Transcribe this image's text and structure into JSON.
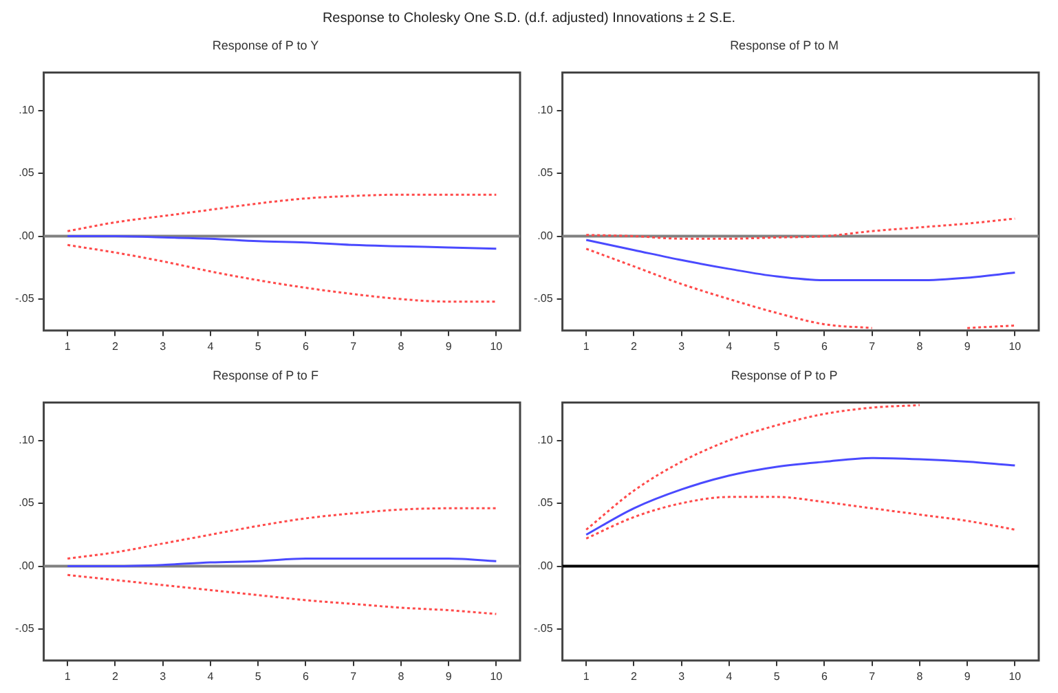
{
  "chart_data": [
    {
      "type": "line",
      "title": "Response to Cholesky One S.D. (d.f. adjusted) Innovations ± 2 S.E.",
      "subtitle": "Response of P to Y",
      "categories": [
        "1",
        "2",
        "3",
        "4",
        "5",
        "6",
        "7",
        "8",
        "9",
        "10"
      ],
      "series": [
        {
          "color": "#4a4aff",
          "line_style": "solid",
          "values": [
            0,
            0,
            -0.001,
            -0.002,
            -0.004,
            -0.005,
            -0.007,
            -0.008,
            -0.009,
            -0.01
          ]
        },
        {
          "color": "#ff4a4a",
          "line_style": "dotted",
          "values": [
            0.004,
            0.011,
            0.016,
            0.021,
            0.026,
            0.03,
            0.032,
            0.033,
            0.033,
            0.033
          ]
        },
        {
          "color": "#ff4a4a",
          "line_style": "dotted",
          "values": [
            -0.007,
            -0.013,
            -0.02,
            -0.028,
            -0.035,
            -0.041,
            -0.046,
            -0.05,
            -0.052,
            -0.052
          ]
        }
      ],
      "ylim": [
        -0.075,
        0.13
      ],
      "yticks": [
        {
          "value": -0.05,
          "label": "-.05"
        },
        {
          "value": 0,
          "label": ".00"
        },
        {
          "value": 0.05,
          "label": ".05"
        },
        {
          "value": 0.1,
          "label": ".10"
        }
      ],
      "ref_lines": [
        {
          "axis": "y",
          "value": 0,
          "color": "#808080"
        }
      ],
      "grid": false,
      "legend": false,
      "marker": "none"
    },
    {
      "type": "line",
      "title": "Response of P to M",
      "categories": [
        "1",
        "2",
        "3",
        "4",
        "5",
        "6",
        "7",
        "8",
        "9",
        "10"
      ],
      "series": [
        {
          "color": "#4a4aff",
          "line_style": "solid",
          "values": [
            -0.003,
            -0.011,
            -0.019,
            -0.026,
            -0.032,
            -0.035,
            -0.035,
            -0.035,
            -0.033,
            -0.029
          ]
        },
        {
          "color": "#ff4a4a",
          "line_style": "dotted",
          "values": [
            0.001,
            0,
            -0.002,
            -0.002,
            -0.001,
            0,
            0.004,
            0.007,
            0.01,
            0.014
          ]
        },
        {
          "color": "#ff4a4a",
          "line_style": "dotted",
          "values": [
            -0.01,
            -0.024,
            -0.038,
            -0.05,
            -0.061,
            -0.07,
            -0.073,
            null,
            -0.073,
            -0.071
          ]
        }
      ],
      "ylim": [
        -0.075,
        0.13
      ],
      "yticks": [
        {
          "value": -0.05,
          "label": "-.05"
        },
        {
          "value": 0,
          "label": ".00"
        },
        {
          "value": 0.05,
          "label": ".05"
        },
        {
          "value": 0.1,
          "label": ".10"
        }
      ],
      "ref_lines": [
        {
          "axis": "y",
          "value": 0,
          "color": "#808080"
        }
      ],
      "grid": false,
      "legend": false,
      "marker": "none"
    },
    {
      "type": "line",
      "title": "Response of P to F",
      "categories": [
        "1",
        "2",
        "3",
        "4",
        "5",
        "6",
        "7",
        "8",
        "9",
        "10"
      ],
      "series": [
        {
          "color": "#4a4aff",
          "line_style": "solid",
          "values": [
            0,
            0,
            0.001,
            0.003,
            0.004,
            0.006,
            0.006,
            0.006,
            0.006,
            0.004
          ]
        },
        {
          "color": "#ff4a4a",
          "line_style": "dotted",
          "values": [
            0.006,
            0.011,
            0.018,
            0.025,
            0.032,
            0.038,
            0.042,
            0.045,
            0.046,
            0.046
          ]
        },
        {
          "color": "#ff4a4a",
          "line_style": "dotted",
          "values": [
            -0.007,
            -0.011,
            -0.015,
            -0.019,
            -0.023,
            -0.027,
            -0.03,
            -0.033,
            -0.035,
            -0.038
          ]
        }
      ],
      "ylim": [
        -0.075,
        0.13
      ],
      "yticks": [
        {
          "value": -0.05,
          "label": "-.05"
        },
        {
          "value": 0,
          "label": ".00"
        },
        {
          "value": 0.05,
          "label": ".05"
        },
        {
          "value": 0.1,
          "label": ".10"
        }
      ],
      "ref_lines": [
        {
          "axis": "y",
          "value": 0,
          "color": "#808080"
        }
      ],
      "grid": false,
      "legend": false,
      "marker": "none"
    },
    {
      "type": "line",
      "title": "Response of P to P",
      "categories": [
        "1",
        "2",
        "3",
        "4",
        "5",
        "6",
        "7",
        "8",
        "9",
        "10"
      ],
      "series": [
        {
          "color": "#4a4aff",
          "line_style": "solid",
          "values": [
            0.025,
            0.046,
            0.061,
            0.072,
            0.079,
            0.083,
            0.086,
            0.085,
            0.083,
            0.08
          ]
        },
        {
          "color": "#ff4a4a",
          "line_style": "dotted",
          "values": [
            0.029,
            0.06,
            0.083,
            0.1,
            0.112,
            0.121,
            0.126,
            0.128,
            null,
            null
          ]
        },
        {
          "color": "#ff4a4a",
          "line_style": "dotted",
          "values": [
            0.022,
            0.039,
            0.05,
            0.055,
            0.055,
            0.051,
            0.046,
            0.041,
            0.036,
            0.029
          ]
        }
      ],
      "ylim": [
        -0.075,
        0.13
      ],
      "yticks": [
        {
          "value": -0.05,
          "label": "-.05"
        },
        {
          "value": 0,
          "label": ".00"
        },
        {
          "value": 0.05,
          "label": ".05"
        },
        {
          "value": 0.1,
          "label": ".10"
        }
      ],
      "ref_lines": [
        {
          "axis": "y",
          "value": 0,
          "color": "#000000"
        }
      ],
      "grid": false,
      "legend": false,
      "marker": "none"
    }
  ]
}
